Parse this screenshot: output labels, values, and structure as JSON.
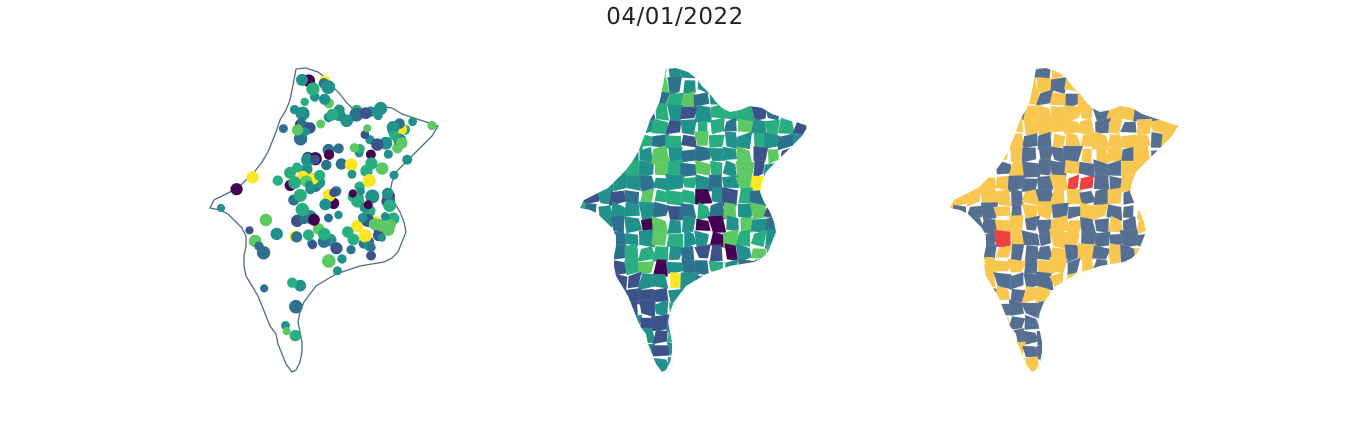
{
  "figure": {
    "title": "04/01/2022"
  },
  "colors": {
    "outline": "#4f6c8c",
    "viridis": [
      "#440154",
      "#3b528b",
      "#2c728e",
      "#21918c",
      "#28ae80",
      "#5ec962",
      "#fde725"
    ],
    "risk_base": "#556f92",
    "risk_yellow": "#f9c74f",
    "risk_red": "#f04040"
  },
  "panels": [
    {
      "kind": "points"
    },
    {
      "kind": "choropleth"
    },
    {
      "kind": "categorical"
    }
  ]
}
